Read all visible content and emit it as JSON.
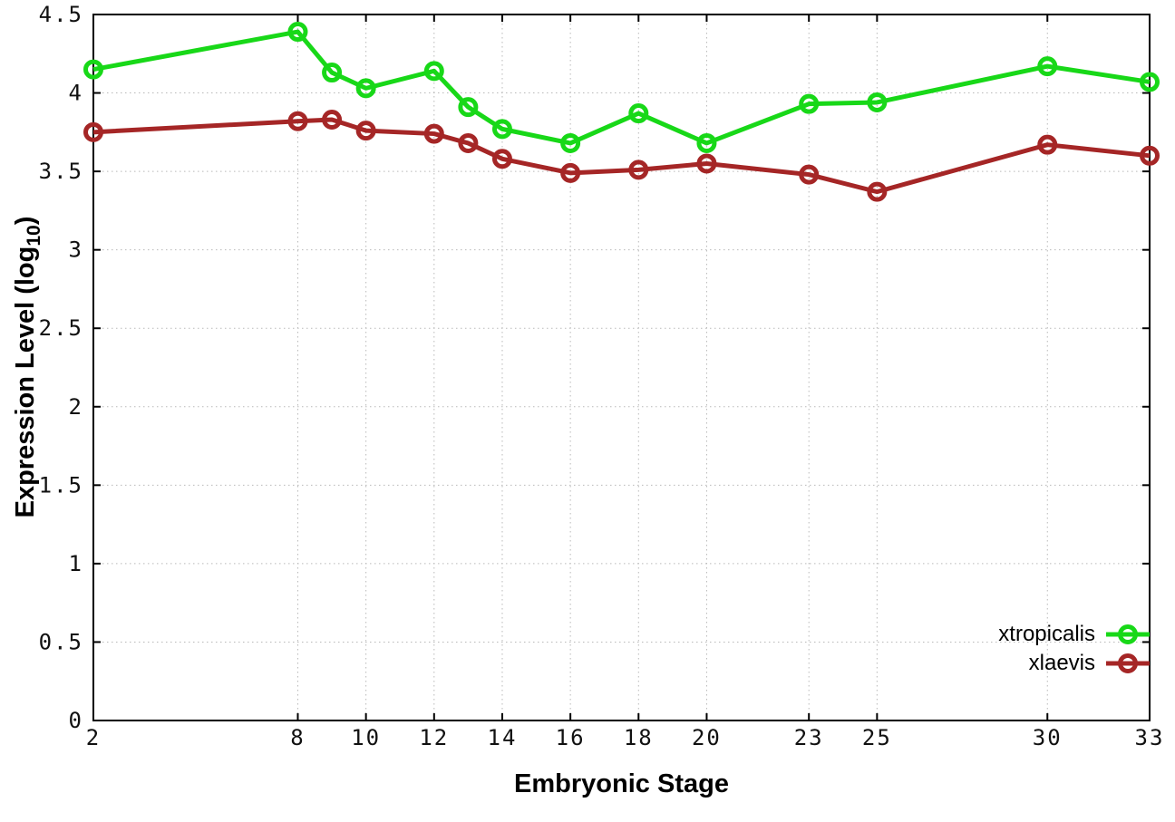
{
  "page": {
    "background": "#ffffff"
  },
  "chart_data": {
    "type": "line",
    "title": "",
    "xlabel": "Embryonic Stage",
    "ylabel": "Expression Level (log10)",
    "ylabel_parts": {
      "prefix": "Expression Level (log",
      "sub": "10",
      "suffix": ")"
    },
    "xlim": [
      2,
      33
    ],
    "ylim": [
      0,
      4.5
    ],
    "grid": "dotted",
    "legend_position": "bottom-right",
    "axis_color": "#000000",
    "grid_color": "#b9b9b9",
    "xticks": [
      {
        "value": 2,
        "label": "2"
      },
      {
        "value": 8,
        "label": "8"
      },
      {
        "value": 10,
        "label": "10"
      },
      {
        "value": 12,
        "label": "12"
      },
      {
        "value": 14,
        "label": "14"
      },
      {
        "value": 16,
        "label": "16"
      },
      {
        "value": 18,
        "label": "18"
      },
      {
        "value": 20,
        "label": "20"
      },
      {
        "value": 23,
        "label": "23"
      },
      {
        "value": 25,
        "label": "25"
      },
      {
        "value": 30,
        "label": "30"
      },
      {
        "value": 33,
        "label": "33"
      }
    ],
    "yticks": [
      {
        "value": 0,
        "label": "0"
      },
      {
        "value": 0.5,
        "label": "0.5"
      },
      {
        "value": 1,
        "label": "1"
      },
      {
        "value": 1.5,
        "label": "1.5"
      },
      {
        "value": 2,
        "label": "2"
      },
      {
        "value": 2.5,
        "label": "2.5"
      },
      {
        "value": 3,
        "label": "3"
      },
      {
        "value": 3.5,
        "label": "3.5"
      },
      {
        "value": 4,
        "label": "4"
      },
      {
        "value": 4.5,
        "label": "4.5"
      }
    ],
    "series": [
      {
        "name": "xtropicalis",
        "color": "#18d818",
        "marker": "open-circle",
        "x": [
          2,
          8,
          9,
          10,
          12,
          13,
          14,
          16,
          18,
          20,
          23,
          25,
          30,
          33
        ],
        "y": [
          4.15,
          4.39,
          4.13,
          4.03,
          4.14,
          3.91,
          3.77,
          3.68,
          3.87,
          3.68,
          3.93,
          3.94,
          4.17,
          4.07
        ]
      },
      {
        "name": "xlaevis",
        "color": "#a52626",
        "marker": "open-circle",
        "x": [
          2,
          8,
          9,
          10,
          12,
          13,
          14,
          16,
          18,
          20,
          23,
          25,
          30,
          33
        ],
        "y": [
          3.75,
          3.82,
          3.83,
          3.76,
          3.74,
          3.68,
          3.58,
          3.49,
          3.51,
          3.55,
          3.48,
          3.37,
          3.67,
          3.6
        ]
      }
    ]
  }
}
